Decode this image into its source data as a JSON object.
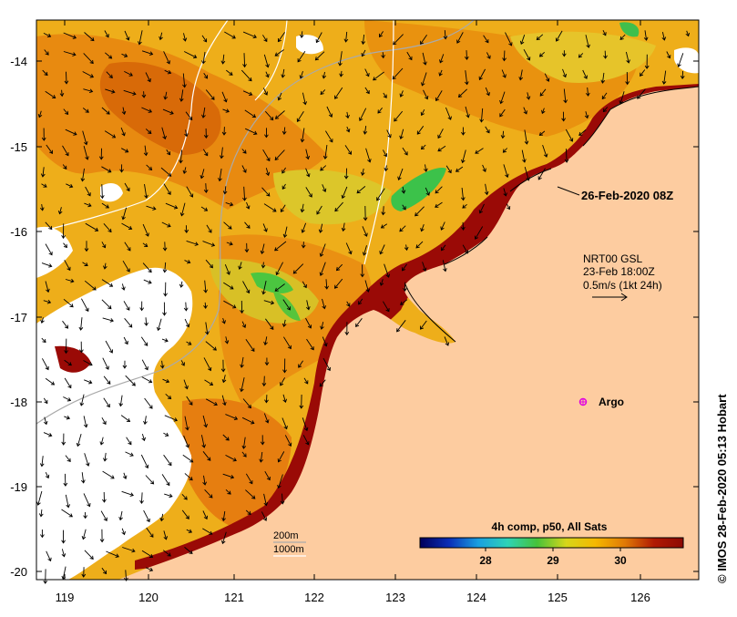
{
  "map": {
    "lon_ticks": [
      "119",
      "120",
      "121",
      "122",
      "123",
      "124",
      "125",
      "126"
    ],
    "lat_ticks": [
      "-14",
      "-15",
      "-16",
      "-17",
      "-18",
      "-19",
      "-20"
    ],
    "colors": {
      "land": "#fdcca0",
      "hot": "#9a0a06",
      "warm": "#e88a10",
      "mild": "#f2b01e",
      "cool": "#e6c82a",
      "green": "#3cc24a",
      "cloud": "#ffffff"
    }
  },
  "annotations": {
    "date_label": "26-Feb-2020 08Z",
    "current_source": "NRT00 GSL",
    "current_time": "23-Feb 18:00Z",
    "scale_label": "0.5m/s (1kt 24h)",
    "argo_label": "Argo",
    "contour_200": "200m",
    "contour_1000": "1000m"
  },
  "colorbar": {
    "title": "4h comp, p50, All Sats",
    "ticks": [
      "28",
      "29",
      "30"
    ],
    "stops": [
      "#00005a",
      "#0a2fb8",
      "#1aa0e0",
      "#2ed3b6",
      "#46c23a",
      "#d6d61a",
      "#f5b800",
      "#e07a06",
      "#b01a04",
      "#8c0a04"
    ]
  },
  "credit": "© IMOS 28-Feb-2020 05:13 Hobart"
}
